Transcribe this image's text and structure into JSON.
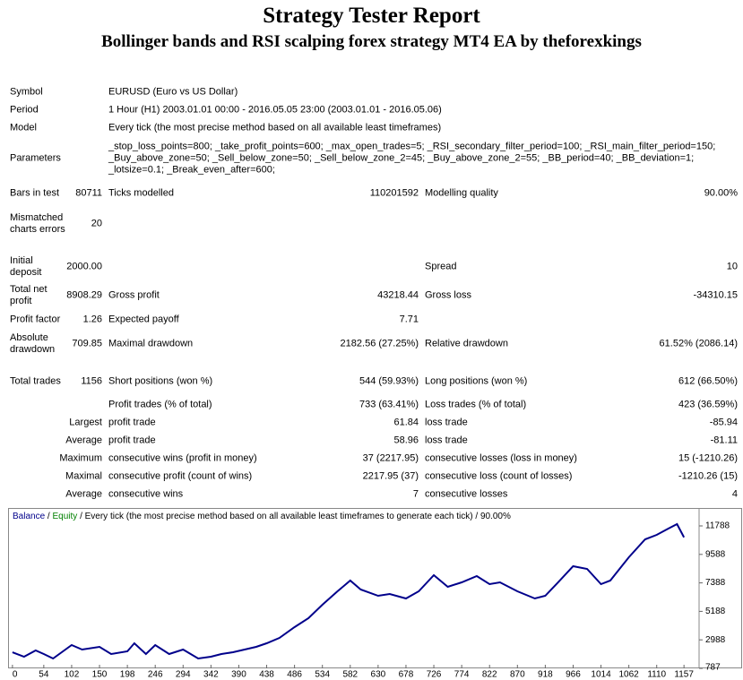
{
  "header": {
    "title": "Strategy Tester Report",
    "subtitle": "Bollinger bands and RSI scalping forex strategy MT4 EA by theforexkings"
  },
  "info": [
    {
      "label": "Symbol",
      "value": "EURUSD (Euro vs US Dollar)"
    },
    {
      "label": "Period",
      "value": "1 Hour (H1) 2003.01.01 00:00 - 2016.05.05 23:00 (2003.01.01 - 2016.05.06)"
    },
    {
      "label": "Model",
      "value": "Every tick (the most precise method based on all available least timeframes)"
    },
    {
      "label": "Parameters",
      "value": "_stop_loss_points=800; _take_profit_points=600; _max_open_trades=5; _RSI_secondary_filter_period=100; _RSI_main_filter_period=150; _Buy_above_zone=50; _Sell_below_zone=50; _Sell_below_zone_2=45; _Buy_above_zone_2=55; _BB_period=40; _BB_deviation=1; _lotsize=0.1; _Break_even_after=600;"
    }
  ],
  "stats": [
    {
      "label": "Bars in test",
      "value": "80711",
      "label2": "Ticks modelled",
      "value2": "110201592",
      "label3": "Modelling quality",
      "value3": "90.00%"
    },
    {
      "label": "Mismatched charts errors",
      "value": "20"
    },
    {
      "label": "Initial deposit",
      "value": "2000.00",
      "label3": "Spread",
      "value3": "10"
    },
    {
      "label": "Total net profit",
      "value": "8908.29",
      "label2": "Gross profit",
      "value2": "43218.44",
      "label3": "Gross loss",
      "value3": "-34310.15"
    },
    {
      "label": "Profit factor",
      "value": "1.26",
      "label2": "Expected payoff",
      "value2": "7.71"
    },
    {
      "label": "Absolute drawdown",
      "value": "709.85",
      "label2": "Maximal drawdown",
      "value2": "2182.56 (27.25%)",
      "label3": "Relative drawdown",
      "value3": "61.52% (2086.14)"
    },
    {
      "label": "Total trades",
      "value": "1156",
      "label2": "Short positions (won %)",
      "value2": "544 (59.93%)",
      "label3": "Long positions (won %)",
      "value3": "612 (66.50%)"
    },
    {
      "label2": "Profit trades (% of total)",
      "value2": "733 (63.41%)",
      "label3": "Loss trades (% of total)",
      "value3": "423 (36.59%)"
    },
    {
      "value": "Largest",
      "label2": "profit trade",
      "value2": "61.84",
      "label3": "loss trade",
      "value3": "-85.94"
    },
    {
      "value": "Average",
      "label2": "profit trade",
      "value2": "58.96",
      "label3": "loss trade",
      "value3": "-81.11"
    },
    {
      "value": "Maximum",
      "label2": "consecutive wins (profit in money)",
      "value2": "37 (2217.95)",
      "label3": "consecutive losses (loss in money)",
      "value3": "15 (-1210.26)"
    },
    {
      "value": "Maximal",
      "label2": "consecutive profit (count of wins)",
      "value2": "2217.95 (37)",
      "label3": "consecutive loss (count of losses)",
      "value3": "-1210.26 (15)"
    },
    {
      "value": "Average",
      "label2": "consecutive wins",
      "value2": "7",
      "label3": "consecutive losses",
      "value3": "4"
    }
  ],
  "chart_data": {
    "type": "line",
    "legend_separator": "/",
    "equity_legend": "Equity",
    "equity_color": "#008000",
    "legend_note": "/ Every tick (the most precise method based on all available least timeframes to generate each tick) / 90.00%",
    "x": [
      0,
      20,
      40,
      54,
      70,
      102,
      120,
      150,
      170,
      198,
      210,
      230,
      246,
      270,
      294,
      320,
      342,
      360,
      380,
      400,
      420,
      438,
      460,
      486,
      510,
      534,
      560,
      582,
      600,
      630,
      650,
      678,
      700,
      726,
      750,
      774,
      800,
      822,
      840,
      870,
      900,
      918,
      940,
      966,
      990,
      1014,
      1030,
      1062,
      1090,
      1110,
      1130,
      1145,
      1157
    ],
    "series": [
      {
        "name": "Balance",
        "color": "#00008b",
        "values": [
          2032,
          1686,
          2171,
          1894,
          1548,
          2586,
          2240,
          2448,
          1894,
          2102,
          2724,
          1894,
          2586,
          1894,
          2240,
          1548,
          1686,
          1894,
          2032,
          2240,
          2448,
          2724,
          3139,
          3970,
          4662,
          5699,
          6737,
          7568,
          6876,
          6391,
          6530,
          6184,
          6737,
          7983,
          7083,
          7429,
          7914,
          7291,
          7429,
          6737,
          6184,
          6391,
          7429,
          8675,
          8467,
          7291,
          7568,
          9367,
          10750,
          11096,
          11581,
          11927,
          10908
        ]
      }
    ],
    "xlim": [
      -6,
      1183
    ],
    "ylim": [
      787,
      13172
    ],
    "xticks": [
      0,
      54,
      102,
      150,
      198,
      246,
      294,
      342,
      390,
      438,
      486,
      534,
      582,
      630,
      678,
      726,
      774,
      822,
      870,
      918,
      966,
      1014,
      1062,
      1110,
      1157
    ],
    "yticks": [
      787,
      2988,
      5188,
      7388,
      9588,
      11788
    ]
  }
}
